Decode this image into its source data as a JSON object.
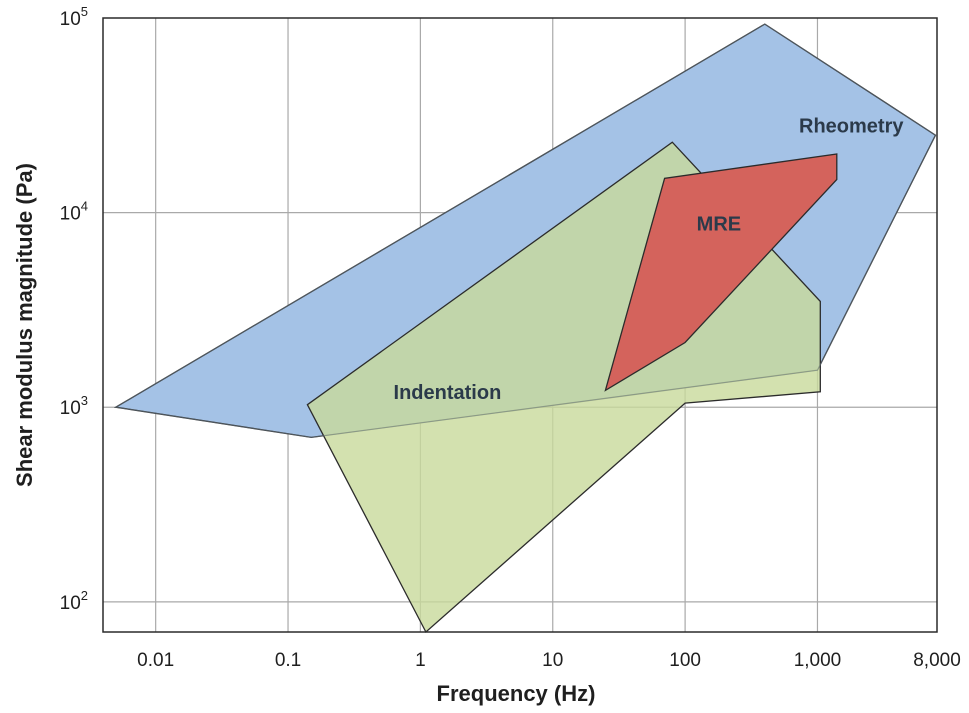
{
  "chart_data": {
    "type": "area",
    "xlabel": "Frequency (Hz)",
    "ylabel": "Shear modulus magnitude (Pa)",
    "x_scale": "log",
    "y_scale": "log",
    "xlim": [
      0.004,
      8000
    ],
    "ylim": [
      70,
      100000
    ],
    "x_ticks": [
      {
        "value": 0.01,
        "label": "0.01"
      },
      {
        "value": 0.1,
        "label": "0.1"
      },
      {
        "value": 1,
        "label": "1"
      },
      {
        "value": 10,
        "label": "10"
      },
      {
        "value": 100,
        "label": "100"
      },
      {
        "value": 1000,
        "label": "1,000"
      },
      {
        "value": 8000,
        "label": "8,000"
      }
    ],
    "y_ticks": [
      {
        "value": 100,
        "base": "10",
        "exp": "2"
      },
      {
        "value": 1000,
        "base": "10",
        "exp": "3"
      },
      {
        "value": 10000,
        "base": "10",
        "exp": "4"
      },
      {
        "value": 100000,
        "base": "10",
        "exp": "5"
      }
    ],
    "grid": true,
    "regions": [
      {
        "name": "Rheometry",
        "color": "#a4c2e6",
        "opacity": 1,
        "label_at": [
          1800,
          28000
        ],
        "points": [
          [
            0.005,
            1000
          ],
          [
            400,
            93000
          ],
          [
            7800,
            25000
          ],
          [
            1000,
            1550
          ],
          [
            0.15,
            700
          ]
        ]
      },
      {
        "name": "Indentation",
        "color": "#c8d99b",
        "opacity": 0.8,
        "label_at": [
          1.6,
          1200
        ],
        "points": [
          [
            0.14,
            1030
          ],
          [
            80,
            23000
          ],
          [
            1050,
            3500
          ],
          [
            1050,
            1200
          ],
          [
            100,
            1050
          ],
          [
            1.1,
            70
          ]
        ]
      },
      {
        "name": "MRE",
        "color": "#d4635c",
        "opacity": 1,
        "label_at": [
          180,
          8800
        ],
        "points": [
          [
            25,
            1220
          ],
          [
            70,
            15000
          ],
          [
            1400,
            20000
          ],
          [
            1400,
            14800
          ],
          [
            100,
            2150
          ]
        ]
      }
    ]
  }
}
